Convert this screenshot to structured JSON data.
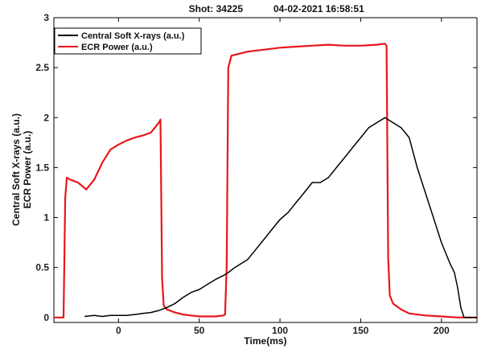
{
  "chart_data": {
    "type": "line",
    "title_left": "Shot:  34225",
    "title_right": "04-02-2021 16:58:51",
    "xlabel": "Time(ms)",
    "ylabel_lines": [
      "Central Soft X-rays (a.u.)",
      "ECR Power (a.u.)"
    ],
    "xlim": [
      -40,
      222
    ],
    "ylim": [
      -0.05,
      3
    ],
    "xticks": [
      0,
      50,
      100,
      150,
      200
    ],
    "yticks": [
      0,
      0.5,
      1,
      1.5,
      2,
      2.5,
      3
    ],
    "legend_placement": "top-left",
    "series": [
      {
        "name": "Central Soft X-rays (a.u.)",
        "color": "#000000",
        "x": [
          -21,
          -15,
          -10,
          -5,
          0,
          5,
          10,
          15,
          20,
          25,
          30,
          35,
          40,
          45,
          50,
          55,
          60,
          65,
          68,
          72,
          76,
          80,
          85,
          90,
          95,
          100,
          105,
          110,
          115,
          120,
          125,
          130,
          135,
          140,
          145,
          150,
          155,
          160,
          165,
          170,
          175,
          180,
          185,
          190,
          195,
          200,
          205,
          208,
          210,
          212,
          214,
          222
        ],
        "y": [
          0.01,
          0.02,
          0.01,
          0.02,
          0.02,
          0.02,
          0.03,
          0.04,
          0.05,
          0.07,
          0.1,
          0.14,
          0.2,
          0.25,
          0.28,
          0.33,
          0.38,
          0.42,
          0.45,
          0.5,
          0.54,
          0.58,
          0.68,
          0.78,
          0.88,
          0.98,
          1.05,
          1.15,
          1.25,
          1.35,
          1.35,
          1.4,
          1.5,
          1.6,
          1.7,
          1.8,
          1.9,
          1.95,
          2.0,
          1.95,
          1.9,
          1.8,
          1.5,
          1.25,
          1.0,
          0.75,
          0.55,
          0.45,
          0.3,
          0.1,
          0.0,
          0.0
        ]
      },
      {
        "name": "ECR Power (a.u.)",
        "color": "#e8161b",
        "x": [
          -40,
          -35,
          -34,
          -33,
          -32,
          -30,
          -25,
          -20,
          -15,
          -10,
          -5,
          0,
          5,
          10,
          15,
          20,
          25,
          26,
          27,
          28,
          30,
          35,
          40,
          45,
          50,
          55,
          60,
          65,
          66,
          67,
          68,
          70,
          75,
          80,
          90,
          100,
          110,
          120,
          130,
          140,
          150,
          160,
          165,
          166,
          167,
          168,
          170,
          175,
          180,
          190,
          200,
          210,
          222
        ],
        "y": [
          0.0,
          0.0,
          0.0,
          1.2,
          1.4,
          1.38,
          1.35,
          1.28,
          1.38,
          1.55,
          1.68,
          1.73,
          1.77,
          1.8,
          1.82,
          1.85,
          1.95,
          1.98,
          0.4,
          0.12,
          0.08,
          0.05,
          0.03,
          0.02,
          0.01,
          0.01,
          0.01,
          0.02,
          0.03,
          0.5,
          2.5,
          2.62,
          2.64,
          2.66,
          2.68,
          2.7,
          2.71,
          2.72,
          2.73,
          2.72,
          2.72,
          2.73,
          2.74,
          2.72,
          0.6,
          0.22,
          0.14,
          0.08,
          0.04,
          0.02,
          0.01,
          0.0,
          0.0
        ]
      }
    ]
  }
}
